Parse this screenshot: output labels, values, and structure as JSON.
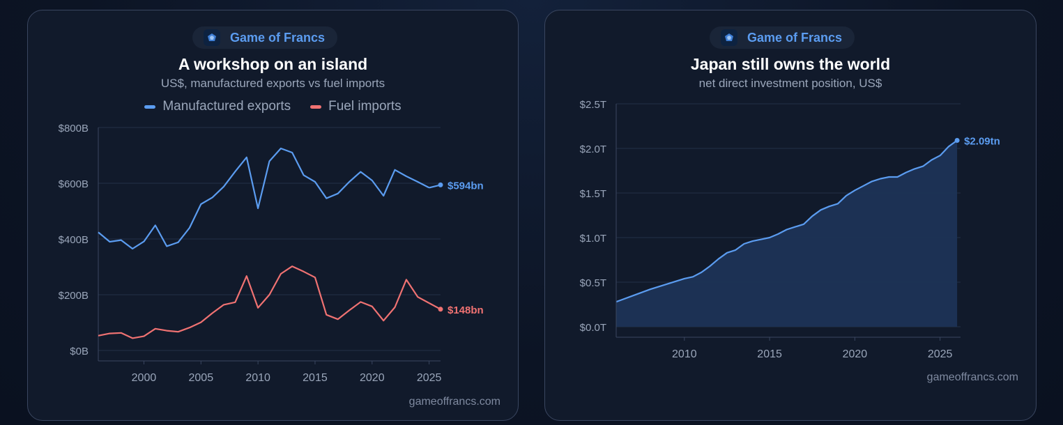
{
  "charts": [
    {
      "brand": "Game of Francs",
      "title": "A workshop on an island",
      "subtitle": "US$, manufactured exports vs fuel imports",
      "credit": "gameoffrancs.com",
      "legend": [
        {
          "label": "Manufactured exports",
          "color": "#5b9cf0"
        },
        {
          "label": "Fuel imports",
          "color": "#f07272"
        }
      ]
    },
    {
      "brand": "Game of Francs",
      "title": "Japan still owns the world",
      "subtitle": "net direct investment position, US$",
      "credit": "gameoffrancs.com"
    }
  ],
  "chart_data": [
    {
      "type": "line",
      "title": "A workshop on an island",
      "subtitle": "US$, manufactured exports vs fuel imports",
      "xlim": [
        1996,
        2026
      ],
      "ylim": [
        0,
        800
      ],
      "x_ticks": [
        2000,
        2005,
        2010,
        2015,
        2020,
        2025
      ],
      "y_ticks": [
        0,
        200,
        400,
        600,
        800
      ],
      "y_tick_labels": [
        "$0B",
        "$200B",
        "$400B",
        "$600B",
        "$800B"
      ],
      "grid": true,
      "legend_position": "top",
      "x": [
        1996,
        1997,
        1998,
        1999,
        2000,
        2001,
        2002,
        2003,
        2004,
        2005,
        2006,
        2007,
        2008,
        2009,
        2010,
        2011,
        2012,
        2013,
        2014,
        2015,
        2016,
        2017,
        2018,
        2019,
        2020,
        2021,
        2022,
        2023,
        2024,
        2025
      ],
      "series": [
        {
          "name": "Manufactured exports",
          "color": "#5b9cf0",
          "end_label": "$594bn",
          "values": [
            424,
            390,
            396,
            365,
            391,
            449,
            374,
            388,
            440,
            525,
            549,
            588,
            642,
            693,
            510,
            679,
            725,
            710,
            629,
            605,
            546,
            563,
            605,
            641,
            610,
            555,
            648,
            625,
            605,
            584
          ]
        },
        {
          "name": "Fuel imports",
          "color": "#f07272",
          "end_label": "$148bn",
          "values": [
            53,
            61,
            63,
            44,
            51,
            78,
            71,
            67,
            82,
            101,
            134,
            164,
            173,
            267,
            153,
            200,
            275,
            302,
            283,
            262,
            128,
            112,
            144,
            174,
            158,
            107,
            155,
            254,
            192,
            170
          ]
        }
      ],
      "end_point": {
        "x": 2026,
        "values": [
          594,
          148
        ]
      }
    },
    {
      "type": "area",
      "title": "Japan still owns the world",
      "subtitle": "net direct investment position, US$",
      "xlim": [
        2006,
        2026.2
      ],
      "ylim": [
        0,
        2.5
      ],
      "x_ticks": [
        2010,
        2015,
        2020,
        2025
      ],
      "y_ticks": [
        0,
        0.5,
        1.0,
        1.5,
        2.0,
        2.5
      ],
      "y_tick_labels": [
        "$0.0T",
        "$0.5T",
        "$1.0T",
        "$1.5T",
        "$2.0T",
        "$2.5T"
      ],
      "grid": true,
      "color": "#5b9cf0",
      "end_label": "$2.09tn",
      "x": [
        2006,
        2007,
        2008,
        2009,
        2010,
        2010.5,
        2011,
        2011.5,
        2012,
        2012.5,
        2013,
        2013.5,
        2014,
        2014.5,
        2015,
        2015.5,
        2016,
        2016.5,
        2017,
        2017.5,
        2018,
        2018.5,
        2019,
        2019.5,
        2020,
        2020.5,
        2021,
        2021.5,
        2022,
        2022.5,
        2023,
        2023.5,
        2024,
        2024.5,
        2025,
        2025.5,
        2026
      ],
      "values": [
        0.28,
        0.35,
        0.42,
        0.48,
        0.54,
        0.56,
        0.61,
        0.68,
        0.76,
        0.83,
        0.86,
        0.93,
        0.96,
        0.98,
        1.0,
        1.04,
        1.09,
        1.12,
        1.15,
        1.24,
        1.31,
        1.35,
        1.38,
        1.47,
        1.53,
        1.58,
        1.63,
        1.66,
        1.68,
        1.68,
        1.73,
        1.77,
        1.8,
        1.87,
        1.92,
        2.02,
        2.09
      ]
    }
  ]
}
